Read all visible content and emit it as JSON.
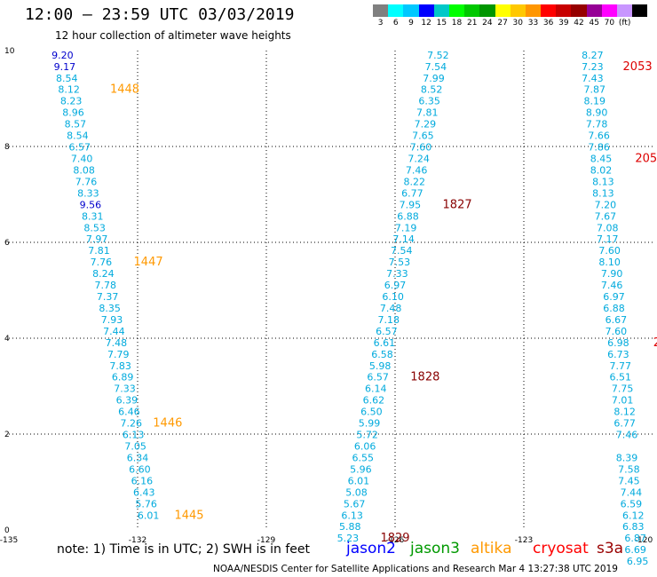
{
  "title": "12:00 — 23:59 UTC 03/03/2019",
  "subtitle": "12 hour collection of altimeter wave heights",
  "legend": {
    "colors": [
      "#808080",
      "#00ffff",
      "#00c8ff",
      "#0000ff",
      "#00c8c8",
      "#00ff00",
      "#00c800",
      "#009600",
      "#ffff00",
      "#ffc800",
      "#ff9600",
      "#ff0000",
      "#c80000",
      "#960000",
      "#960096",
      "#ff00ff",
      "#c896ff",
      "#000000"
    ],
    "ticks": [
      "3",
      "6",
      "9",
      "12",
      "15",
      "18",
      "21",
      "24",
      "27",
      "30",
      "33",
      "36",
      "39",
      "42",
      "45",
      "70",
      "(ft)",
      ""
    ]
  },
  "axes": {
    "x_labels": [
      "-135",
      "-132",
      "-129",
      "-126",
      "-123",
      "-120"
    ],
    "y_labels": [
      "0",
      "2",
      "4",
      "6",
      "8",
      "10"
    ]
  },
  "tracks": [
    {
      "id": "track-a",
      "points": [
        {
          "x": -133.75,
          "y": 9.91,
          "v": "9.20",
          "c": "#0000cc"
        },
        {
          "x": -133.7,
          "y": 9.67,
          "v": "9.17",
          "c": "#0000cc"
        },
        {
          "x": -133.65,
          "y": 9.43,
          "v": "8.54",
          "c": "#00aadd"
        },
        {
          "x": -133.6,
          "y": 9.19,
          "v": "8.12",
          "c": "#00aadd"
        },
        {
          "x": -133.55,
          "y": 8.95,
          "v": "8.23",
          "c": "#00aadd"
        },
        {
          "x": -133.5,
          "y": 8.71,
          "v": "8.96",
          "c": "#00aadd"
        },
        {
          "x": -133.45,
          "y": 8.47,
          "v": "8.57",
          "c": "#00aadd"
        },
        {
          "x": -133.4,
          "y": 8.23,
          "v": "8.54",
          "c": "#00aadd"
        },
        {
          "x": -133.35,
          "y": 7.99,
          "v": "6.57",
          "c": "#00aadd"
        },
        {
          "x": -133.3,
          "y": 7.75,
          "v": "7.40",
          "c": "#00aadd"
        },
        {
          "x": -133.25,
          "y": 7.51,
          "v": "8.08",
          "c": "#00aadd"
        },
        {
          "x": -133.2,
          "y": 7.27,
          "v": "7.76",
          "c": "#00aadd"
        },
        {
          "x": -133.15,
          "y": 7.03,
          "v": "8.33",
          "c": "#00aadd"
        },
        {
          "x": -133.1,
          "y": 6.79,
          "v": "9.56",
          "c": "#0000cc"
        },
        {
          "x": -133.05,
          "y": 6.55,
          "v": "8.31",
          "c": "#00aadd"
        },
        {
          "x": -133.0,
          "y": 6.31,
          "v": "8.53",
          "c": "#00aadd"
        },
        {
          "x": -132.95,
          "y": 6.07,
          "v": "7.97",
          "c": "#00aadd"
        },
        {
          "x": -132.9,
          "y": 5.83,
          "v": "7.81",
          "c": "#00aadd"
        },
        {
          "x": -132.85,
          "y": 5.59,
          "v": "7.76",
          "c": "#00aadd"
        },
        {
          "x": -132.8,
          "y": 5.35,
          "v": "8.24",
          "c": "#00aadd"
        },
        {
          "x": -132.75,
          "y": 5.11,
          "v": "7.78",
          "c": "#00aadd"
        },
        {
          "x": -132.7,
          "y": 4.87,
          "v": "7.37",
          "c": "#00aadd"
        },
        {
          "x": -132.65,
          "y": 4.63,
          "v": "8.35",
          "c": "#00aadd"
        },
        {
          "x": -132.6,
          "y": 4.39,
          "v": "7.93",
          "c": "#00aadd"
        },
        {
          "x": -132.55,
          "y": 4.15,
          "v": "7.44",
          "c": "#00aadd"
        },
        {
          "x": -132.5,
          "y": 3.91,
          "v": "7.48",
          "c": "#00aadd"
        },
        {
          "x": -132.45,
          "y": 3.67,
          "v": "7.79",
          "c": "#00aadd"
        },
        {
          "x": -132.4,
          "y": 3.43,
          "v": "7.83",
          "c": "#00aadd"
        },
        {
          "x": -132.35,
          "y": 3.19,
          "v": "6.89",
          "c": "#00aadd"
        },
        {
          "x": -132.3,
          "y": 2.95,
          "v": "7.33",
          "c": "#00aadd"
        },
        {
          "x": -132.25,
          "y": 2.71,
          "v": "6.39",
          "c": "#00aadd"
        },
        {
          "x": -132.2,
          "y": 2.47,
          "v": "6.46",
          "c": "#00aadd"
        },
        {
          "x": -132.15,
          "y": 2.23,
          "v": "7.26",
          "c": "#00aadd"
        },
        {
          "x": -132.1,
          "y": 1.99,
          "v": "6.13",
          "c": "#00aadd"
        },
        {
          "x": -132.05,
          "y": 1.75,
          "v": "7.05",
          "c": "#00aadd"
        },
        {
          "x": -132.0,
          "y": 1.51,
          "v": "6.34",
          "c": "#00aadd"
        },
        {
          "x": -131.95,
          "y": 1.27,
          "v": "6.60",
          "c": "#00aadd"
        },
        {
          "x": -131.9,
          "y": 1.03,
          "v": "6.16",
          "c": "#00aadd"
        },
        {
          "x": -131.85,
          "y": 0.79,
          "v": "6.43",
          "c": "#00aadd"
        },
        {
          "x": -131.8,
          "y": 0.55,
          "v": "5.76",
          "c": "#00aadd"
        },
        {
          "x": -131.75,
          "y": 0.31,
          "v": "6.01",
          "c": "#00aadd"
        }
      ],
      "times": [
        {
          "x": -132.3,
          "y": 9.19,
          "t": "1448",
          "c": "#ff9900"
        },
        {
          "x": -131.75,
          "y": 5.59,
          "t": "1447",
          "c": "#ff9900"
        },
        {
          "x": -131.3,
          "y": 2.23,
          "t": "1446",
          "c": "#ff9900"
        },
        {
          "x": -130.8,
          "y": 0.31,
          "t": "1445",
          "c": "#ff9900"
        }
      ]
    },
    {
      "id": "track-b",
      "points": [
        {
          "x": -125.0,
          "y": 9.91,
          "v": "7.52",
          "c": "#00aadd"
        },
        {
          "x": -125.05,
          "y": 9.67,
          "v": "7.54",
          "c": "#00aadd"
        },
        {
          "x": -125.1,
          "y": 9.43,
          "v": "7.99",
          "c": "#00aadd"
        },
        {
          "x": -125.15,
          "y": 9.19,
          "v": "8.52",
          "c": "#00aadd"
        },
        {
          "x": -125.2,
          "y": 8.95,
          "v": "6.35",
          "c": "#00aadd"
        },
        {
          "x": -125.25,
          "y": 8.71,
          "v": "7.81",
          "c": "#00aadd"
        },
        {
          "x": -125.3,
          "y": 8.47,
          "v": "7.29",
          "c": "#00aadd"
        },
        {
          "x": -125.35,
          "y": 8.23,
          "v": "7.65",
          "c": "#00aadd"
        },
        {
          "x": -125.4,
          "y": 7.99,
          "v": "7.60",
          "c": "#00aadd"
        },
        {
          "x": -125.45,
          "y": 7.75,
          "v": "7.24",
          "c": "#00aadd"
        },
        {
          "x": -125.5,
          "y": 7.51,
          "v": "7.46",
          "c": "#00aadd"
        },
        {
          "x": -125.55,
          "y": 7.27,
          "v": "8.22",
          "c": "#00aadd"
        },
        {
          "x": -125.6,
          "y": 7.03,
          "v": "6.77",
          "c": "#00aadd"
        },
        {
          "x": -125.65,
          "y": 6.79,
          "v": "7.95",
          "c": "#00aadd"
        },
        {
          "x": -125.7,
          "y": 6.55,
          "v": "6.88",
          "c": "#00aadd"
        },
        {
          "x": -125.75,
          "y": 6.31,
          "v": "7.19",
          "c": "#00aadd"
        },
        {
          "x": -125.8,
          "y": 6.07,
          "v": "7.14",
          "c": "#00aadd"
        },
        {
          "x": -125.85,
          "y": 5.83,
          "v": "7.54",
          "c": "#00aadd"
        },
        {
          "x": -125.9,
          "y": 5.59,
          "v": "7.53",
          "c": "#00aadd"
        },
        {
          "x": -125.95,
          "y": 5.35,
          "v": "7.33",
          "c": "#00aadd"
        },
        {
          "x": -126.0,
          "y": 5.11,
          "v": "6.97",
          "c": "#00aadd"
        },
        {
          "x": -126.05,
          "y": 4.87,
          "v": "6.10",
          "c": "#00aadd"
        },
        {
          "x": -126.1,
          "y": 4.63,
          "v": "7.48",
          "c": "#00aadd"
        },
        {
          "x": -126.15,
          "y": 4.39,
          "v": "7.18",
          "c": "#00aadd"
        },
        {
          "x": -126.2,
          "y": 4.15,
          "v": "6.57",
          "c": "#00aadd"
        },
        {
          "x": -126.25,
          "y": 3.91,
          "v": "6.61",
          "c": "#00aadd"
        },
        {
          "x": -126.3,
          "y": 3.67,
          "v": "6.58",
          "c": "#00aadd"
        },
        {
          "x": -126.35,
          "y": 3.43,
          "v": "5.98",
          "c": "#00aadd"
        },
        {
          "x": -126.4,
          "y": 3.19,
          "v": "6.57",
          "c": "#00aadd"
        },
        {
          "x": -126.45,
          "y": 2.95,
          "v": "6.14",
          "c": "#00aadd"
        },
        {
          "x": -126.5,
          "y": 2.71,
          "v": "6.62",
          "c": "#00aadd"
        },
        {
          "x": -126.55,
          "y": 2.47,
          "v": "6.50",
          "c": "#00aadd"
        },
        {
          "x": -126.6,
          "y": 2.23,
          "v": "5.99",
          "c": "#00aadd"
        },
        {
          "x": -126.65,
          "y": 1.99,
          "v": "5.72",
          "c": "#00aadd"
        },
        {
          "x": -126.7,
          "y": 1.75,
          "v": "6.06",
          "c": "#00aadd"
        },
        {
          "x": -126.75,
          "y": 1.51,
          "v": "6.55",
          "c": "#00aadd"
        },
        {
          "x": -126.8,
          "y": 1.27,
          "v": "5.96",
          "c": "#00aadd"
        },
        {
          "x": -126.85,
          "y": 1.03,
          "v": "6.01",
          "c": "#00aadd"
        },
        {
          "x": -126.9,
          "y": 0.79,
          "v": "5.08",
          "c": "#00aadd"
        },
        {
          "x": -126.95,
          "y": 0.55,
          "v": "5.67",
          "c": "#00aadd"
        },
        {
          "x": -127.0,
          "y": 0.31,
          "v": "6.13",
          "c": "#00aadd"
        },
        {
          "x": -127.05,
          "y": 0.07,
          "v": "5.88",
          "c": "#00aadd"
        },
        {
          "x": -127.1,
          "y": -0.17,
          "v": "5.23",
          "c": "#00aadd"
        }
      ],
      "times": [
        {
          "x": -124.55,
          "y": 6.79,
          "t": "1827",
          "c": "#880000"
        },
        {
          "x": -125.3,
          "y": 3.19,
          "t": "1828",
          "c": "#880000"
        },
        {
          "x": -126.0,
          "y": -0.17,
          "t": "1829",
          "c": "#880000"
        }
      ]
    },
    {
      "id": "track-c",
      "points": [
        {
          "x": -121.4,
          "y": 9.91,
          "v": "8.27",
          "c": "#00aadd"
        },
        {
          "x": -121.4,
          "y": 9.67,
          "v": "7.23",
          "c": "#00aadd"
        },
        {
          "x": -121.4,
          "y": 9.43,
          "v": "7.43",
          "c": "#00aadd"
        },
        {
          "x": -121.35,
          "y": 9.19,
          "v": "7.87",
          "c": "#00aadd"
        },
        {
          "x": -121.35,
          "y": 8.95,
          "v": "8.19",
          "c": "#00aadd"
        },
        {
          "x": -121.3,
          "y": 8.71,
          "v": "8.90",
          "c": "#00aadd"
        },
        {
          "x": -121.3,
          "y": 8.47,
          "v": "7.78",
          "c": "#00aadd"
        },
        {
          "x": -121.25,
          "y": 8.23,
          "v": "7.66",
          "c": "#00aadd"
        },
        {
          "x": -121.25,
          "y": 7.99,
          "v": "7.86",
          "c": "#00aadd"
        },
        {
          "x": -121.2,
          "y": 7.75,
          "v": "8.45",
          "c": "#00aadd"
        },
        {
          "x": -121.2,
          "y": 7.51,
          "v": "8.02",
          "c": "#00aadd"
        },
        {
          "x": -121.15,
          "y": 7.27,
          "v": "8.13",
          "c": "#00aadd"
        },
        {
          "x": -121.15,
          "y": 7.03,
          "v": "8.13",
          "c": "#00aadd"
        },
        {
          "x": -121.1,
          "y": 6.79,
          "v": "7.20",
          "c": "#00aadd"
        },
        {
          "x": -121.1,
          "y": 6.55,
          "v": "7.67",
          "c": "#00aadd"
        },
        {
          "x": -121.05,
          "y": 6.31,
          "v": "7.08",
          "c": "#00aadd"
        },
        {
          "x": -121.05,
          "y": 6.07,
          "v": "7.17",
          "c": "#00aadd"
        },
        {
          "x": -121.0,
          "y": 5.83,
          "v": "7.60",
          "c": "#00aadd"
        },
        {
          "x": -121.0,
          "y": 5.59,
          "v": "8.10",
          "c": "#00aadd"
        },
        {
          "x": -120.95,
          "y": 5.35,
          "v": "7.90",
          "c": "#00aadd"
        },
        {
          "x": -120.95,
          "y": 5.11,
          "v": "7.46",
          "c": "#00aadd"
        },
        {
          "x": -120.9,
          "y": 4.87,
          "v": "6.97",
          "c": "#00aadd"
        },
        {
          "x": -120.9,
          "y": 4.63,
          "v": "6.88",
          "c": "#00aadd"
        },
        {
          "x": -120.85,
          "y": 4.39,
          "v": "6.67",
          "c": "#00aadd"
        },
        {
          "x": -120.85,
          "y": 4.15,
          "v": "7.60",
          "c": "#00aadd"
        },
        {
          "x": -120.8,
          "y": 3.91,
          "v": "6.98",
          "c": "#00aadd"
        },
        {
          "x": -120.8,
          "y": 3.67,
          "v": "6.73",
          "c": "#00aadd"
        },
        {
          "x": -120.75,
          "y": 3.43,
          "v": "7.77",
          "c": "#00aadd"
        },
        {
          "x": -120.75,
          "y": 3.19,
          "v": "6.51",
          "c": "#00aadd"
        },
        {
          "x": -120.7,
          "y": 2.95,
          "v": "7.75",
          "c": "#00aadd"
        },
        {
          "x": -120.7,
          "y": 2.71,
          "v": "7.01",
          "c": "#00aadd"
        },
        {
          "x": -120.65,
          "y": 2.47,
          "v": "8.12",
          "c": "#00aadd"
        },
        {
          "x": -120.65,
          "y": 2.23,
          "v": "6.77",
          "c": "#00aadd"
        },
        {
          "x": -120.6,
          "y": 1.99,
          "v": "7.46",
          "c": "#00aadd"
        },
        {
          "x": -120.6,
          "y": 1.51,
          "v": "8.39",
          "c": "#00aadd"
        },
        {
          "x": -120.55,
          "y": 1.27,
          "v": "7.58",
          "c": "#00aadd"
        },
        {
          "x": -120.55,
          "y": 1.03,
          "v": "7.45",
          "c": "#00aadd"
        },
        {
          "x": -120.5,
          "y": 0.79,
          "v": "7.44",
          "c": "#00aadd"
        },
        {
          "x": -120.5,
          "y": 0.55,
          "v": "6.59",
          "c": "#00aadd"
        },
        {
          "x": -120.45,
          "y": 0.31,
          "v": "6.12",
          "c": "#00aadd"
        },
        {
          "x": -120.45,
          "y": 0.07,
          "v": "6.83",
          "c": "#00aadd"
        },
        {
          "x": -120.4,
          "y": -0.17,
          "v": "6.87",
          "c": "#00aadd"
        },
        {
          "x": -120.4,
          "y": -0.41,
          "v": "6.69",
          "c": "#00aadd"
        },
        {
          "x": -120.35,
          "y": -0.65,
          "v": "6.95",
          "c": "#00aadd"
        }
      ],
      "times": [
        {
          "x": -120.35,
          "y": 9.67,
          "t": "2053",
          "c": "#dd0000"
        },
        {
          "x": -120.15,
          "y": 7.75,
          "t": "205",
          "c": "#dd0000"
        },
        {
          "x": -119.9,
          "y": 3.91,
          "t": "2",
          "c": "#dd0000"
        }
      ]
    }
  ],
  "note": "note:  1) Time is in UTC;  2) SWH is in feet",
  "satellites": [
    {
      "name": "jason2",
      "color": "#0000ff"
    },
    {
      "name": "jason3",
      "color": "#009900"
    },
    {
      "name": "altika",
      "color": "#ff9900"
    },
    {
      "name": "cryosat",
      "color": "#ff0000"
    },
    {
      "name": "s3a",
      "color": "#990000"
    }
  ],
  "credit": "NOAA/NESDIS Center for Satellite Applications and Research    Mar  4 13:27:38 UTC 2019"
}
